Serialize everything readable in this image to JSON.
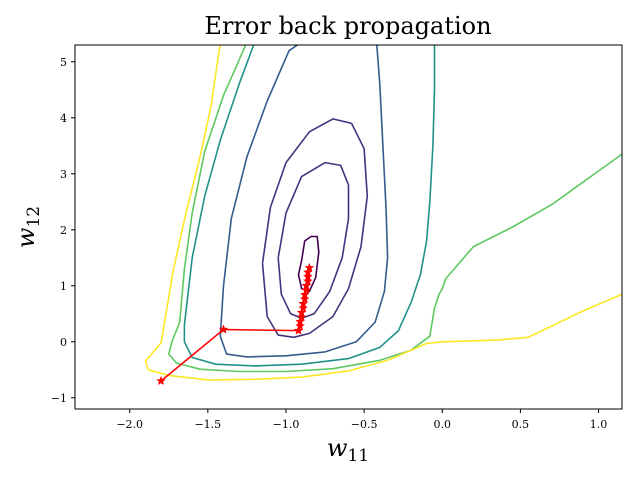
{
  "chart_data": {
    "type": "contour",
    "title": "Error back propagation",
    "xlabel": "w",
    "xlabel_sub": "11",
    "ylabel": "w",
    "ylabel_sub": "12",
    "xlim": [
      -2.35,
      1.15
    ],
    "ylim": [
      -1.2,
      5.3
    ],
    "x_ticks": [
      {
        "value": -2.0,
        "label": "−2.0"
      },
      {
        "value": -1.5,
        "label": "−1.5"
      },
      {
        "value": -1.0,
        "label": "−1.0"
      },
      {
        "value": -0.5,
        "label": "−0.5"
      },
      {
        "value": 0.0,
        "label": "0.0"
      },
      {
        "value": 0.5,
        "label": "0.5"
      },
      {
        "value": 1.0,
        "label": "1.0"
      }
    ],
    "y_ticks": [
      {
        "value": -1,
        "label": "−1"
      },
      {
        "value": 0,
        "label": "0"
      },
      {
        "value": 1,
        "label": "1"
      },
      {
        "value": 2,
        "label": "2"
      },
      {
        "value": 3,
        "label": "3"
      },
      {
        "value": 4,
        "label": "4"
      },
      {
        "value": 5,
        "label": "5"
      }
    ],
    "contours": [
      {
        "level": 1,
        "color": "#440154",
        "points": [
          [
            -0.9,
            1.45
          ],
          [
            -0.88,
            1.8
          ],
          [
            -0.84,
            1.88
          ],
          [
            -0.8,
            1.88
          ],
          [
            -0.79,
            1.6
          ],
          [
            -0.81,
            1.15
          ],
          [
            -0.85,
            0.9
          ],
          [
            -0.9,
            0.95
          ],
          [
            -0.92,
            1.2
          ],
          [
            -0.9,
            1.45
          ]
        ]
      },
      {
        "level": 2,
        "color": "#46327e",
        "points": [
          [
            -1.05,
            1.5
          ],
          [
            -1.0,
            2.3
          ],
          [
            -0.9,
            2.95
          ],
          [
            -0.75,
            3.2
          ],
          [
            -0.65,
            3.15
          ],
          [
            -0.6,
            2.8
          ],
          [
            -0.6,
            2.2
          ],
          [
            -0.64,
            1.5
          ],
          [
            -0.72,
            0.9
          ],
          [
            -0.82,
            0.5
          ],
          [
            -0.9,
            0.42
          ],
          [
            -0.97,
            0.5
          ],
          [
            -1.03,
            0.85
          ],
          [
            -1.05,
            1.5
          ]
        ]
      },
      {
        "level": 3,
        "color": "#46327e",
        "points": [
          [
            -1.15,
            1.4
          ],
          [
            -1.1,
            2.4
          ],
          [
            -1.0,
            3.2
          ],
          [
            -0.85,
            3.75
          ],
          [
            -0.7,
            3.98
          ],
          [
            -0.58,
            3.9
          ],
          [
            -0.5,
            3.45
          ],
          [
            -0.48,
            2.6
          ],
          [
            -0.52,
            1.7
          ],
          [
            -0.6,
            0.95
          ],
          [
            -0.7,
            0.45
          ],
          [
            -0.85,
            0.15
          ],
          [
            -0.95,
            0.08
          ],
          [
            -1.05,
            0.12
          ],
          [
            -1.12,
            0.45
          ],
          [
            -1.15,
            1.4
          ]
        ]
      },
      {
        "level": 4,
        "color": "#365c8d",
        "points": [
          [
            -1.4,
            1.0
          ],
          [
            -1.35,
            2.2
          ],
          [
            -1.25,
            3.3
          ],
          [
            -1.12,
            4.3
          ],
          [
            -0.98,
            5.2
          ],
          [
            -0.9,
            5.35
          ]
        ]
      },
      {
        "level": 4,
        "color": "#365c8d",
        "points": [
          [
            -0.42,
            5.35
          ],
          [
            -0.4,
            4.6
          ],
          [
            -0.38,
            3.5
          ],
          [
            -0.36,
            2.4
          ],
          [
            -0.35,
            1.5
          ],
          [
            -0.37,
            0.9
          ],
          [
            -0.43,
            0.35
          ],
          [
            -0.55,
            0.0
          ],
          [
            -0.75,
            -0.18
          ],
          [
            -1.0,
            -0.25
          ],
          [
            -1.25,
            -0.27
          ],
          [
            -1.38,
            -0.22
          ],
          [
            -1.42,
            0.1
          ],
          [
            -1.4,
            1.0
          ]
        ]
      },
      {
        "level": 5,
        "color": "#21918c",
        "points": [
          [
            -1.65,
            0.3
          ],
          [
            -1.6,
            1.5
          ],
          [
            -1.52,
            2.6
          ],
          [
            -1.42,
            3.6
          ],
          [
            -1.3,
            4.6
          ],
          [
            -1.2,
            5.35
          ]
        ]
      },
      {
        "level": 5,
        "color": "#21918c",
        "points": [
          [
            -0.05,
            5.35
          ],
          [
            -0.05,
            4.5
          ],
          [
            -0.06,
            3.5
          ],
          [
            -0.08,
            2.5
          ],
          [
            -0.1,
            1.8
          ],
          [
            -0.14,
            1.2
          ],
          [
            -0.2,
            0.7
          ],
          [
            -0.28,
            0.2
          ],
          [
            -0.4,
            -0.1
          ],
          [
            -0.6,
            -0.3
          ],
          [
            -0.9,
            -0.4
          ],
          [
            -1.2,
            -0.43
          ],
          [
            -1.45,
            -0.4
          ],
          [
            -1.6,
            -0.28
          ],
          [
            -1.65,
            0.0
          ],
          [
            -1.65,
            0.3
          ]
        ]
      },
      {
        "level": 6,
        "color": "#5ec962",
        "points": [
          [
            -1.73,
            0.0
          ],
          [
            -1.68,
            0.35
          ],
          [
            -1.65,
            1.3
          ],
          [
            -1.6,
            2.3
          ],
          [
            -1.52,
            3.4
          ],
          [
            -1.4,
            4.4
          ],
          [
            -1.25,
            5.35
          ]
        ]
      },
      {
        "level": 6,
        "color": "#5ec962",
        "points": [
          [
            1.15,
            3.35
          ],
          [
            1.05,
            3.15
          ],
          [
            0.9,
            2.85
          ],
          [
            0.7,
            2.45
          ],
          [
            0.45,
            2.05
          ],
          [
            0.2,
            1.7
          ],
          [
            0.02,
            1.12
          ],
          [
            0.0,
            0.95
          ],
          [
            -0.02,
            0.85
          ],
          [
            -0.05,
            0.6
          ],
          [
            -0.08,
            0.1
          ],
          [
            -0.2,
            -0.15
          ],
          [
            -0.4,
            -0.33
          ],
          [
            -0.7,
            -0.48
          ],
          [
            -1.0,
            -0.53
          ],
          [
            -1.3,
            -0.53
          ],
          [
            -1.55,
            -0.49
          ],
          [
            -1.7,
            -0.38
          ],
          [
            -1.75,
            -0.22
          ],
          [
            -1.73,
            0.0
          ]
        ]
      },
      {
        "level": 7,
        "color": "#fde725",
        "points": [
          [
            -1.9,
            -0.35
          ],
          [
            -1.8,
            -0.02
          ],
          [
            -1.78,
            0.3
          ],
          [
            -1.72,
            1.3
          ],
          [
            -1.64,
            2.3
          ],
          [
            -1.55,
            3.3
          ],
          [
            -1.48,
            4.2
          ],
          [
            -1.42,
            5.35
          ]
        ]
      },
      {
        "level": 7,
        "color": "#fde725",
        "points": [
          [
            1.15,
            0.85
          ],
          [
            0.9,
            0.55
          ],
          [
            0.55,
            0.08
          ],
          [
            0.35,
            0.03
          ],
          [
            0.0,
            0.0
          ],
          [
            -0.1,
            -0.03
          ],
          [
            -0.35,
            -0.33
          ],
          [
            -0.6,
            -0.52
          ],
          [
            -0.9,
            -0.63
          ],
          [
            -1.2,
            -0.67
          ],
          [
            -1.5,
            -0.68
          ],
          [
            -1.75,
            -0.6
          ],
          [
            -1.88,
            -0.5
          ],
          [
            -1.9,
            -0.35
          ]
        ]
      }
    ],
    "descent_path": {
      "color": "#ff0000",
      "marker": "star",
      "points": [
        [
          -1.8,
          -0.7
        ],
        [
          -1.4,
          0.22
        ],
        [
          -0.92,
          0.2
        ],
        [
          -0.91,
          0.28
        ],
        [
          -0.91,
          0.36
        ],
        [
          -0.9,
          0.44
        ],
        [
          -0.9,
          0.52
        ],
        [
          -0.89,
          0.6
        ],
        [
          -0.89,
          0.68
        ],
        [
          -0.88,
          0.76
        ],
        [
          -0.88,
          0.84
        ],
        [
          -0.87,
          0.92
        ],
        [
          -0.87,
          1.0
        ],
        [
          -0.86,
          1.08
        ],
        [
          -0.86,
          1.16
        ],
        [
          -0.86,
          1.24
        ],
        [
          -0.85,
          1.32
        ]
      ]
    }
  }
}
